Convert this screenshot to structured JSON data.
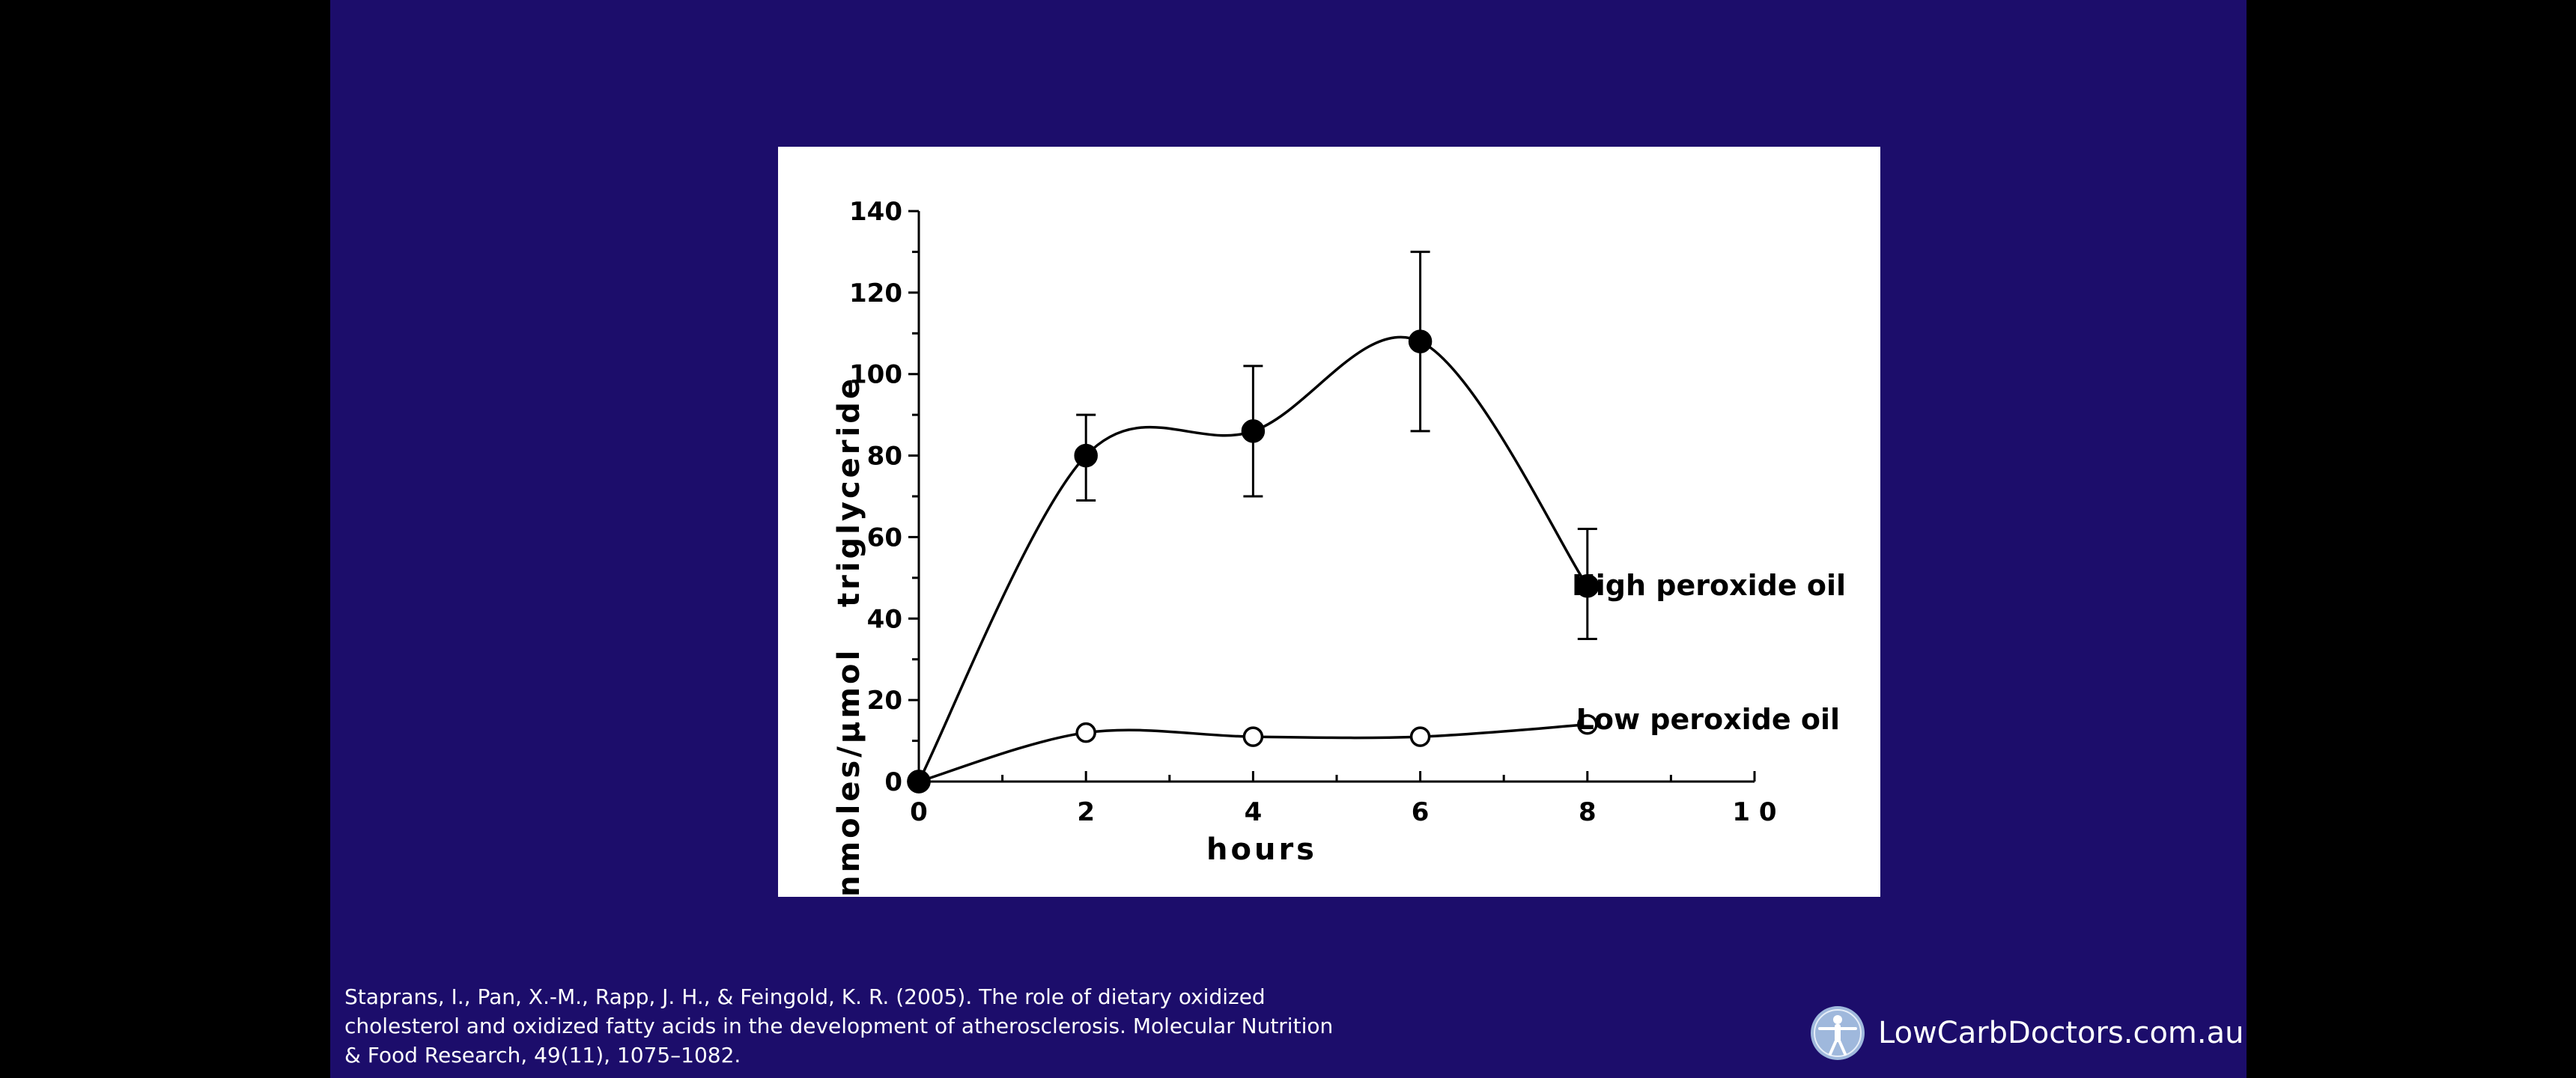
{
  "citation": {
    "lines": [
      "Staprans, I., Pan, X.-M., Rapp, J. H., & Feingold, K. R. (2005). The role of dietary oxidized",
      "cholesterol and oxidized fatty acids in the development of atherosclerosis. Molecular Nutrition",
      "& Food Research, 49(11), 1075–1082."
    ]
  },
  "brand": {
    "name": "LowCarbDoctors.com.au",
    "logo_icon": "vitruvian-man-icon"
  },
  "colors": {
    "slide_background": "#1c0d6b",
    "page_background": "#000000",
    "chart_background": "#ffffff",
    "ink": "#000000"
  },
  "chart_data": {
    "type": "line",
    "title": "",
    "xlabel": "hours",
    "ylabel": "nmoles/µmol   triglyceride",
    "xlim": [
      0,
      10
    ],
    "ylim": [
      0,
      140
    ],
    "x_ticks": [
      0,
      2,
      4,
      6,
      8,
      10
    ],
    "x_tick_labels": [
      "0",
      "2",
      "4",
      "6",
      "8",
      "1 0"
    ],
    "y_ticks": [
      0,
      20,
      40,
      60,
      80,
      100,
      120,
      140
    ],
    "y_tick_labels": [
      "0",
      "20",
      "40",
      "60",
      "80",
      "100",
      "120",
      "140"
    ],
    "grid": false,
    "legend": "inline labels at right of series",
    "series": [
      {
        "name": "High peroxide oil",
        "marker": "filled-circle",
        "x": [
          0,
          2,
          4,
          6,
          8
        ],
        "y": [
          0,
          80,
          86,
          108,
          48
        ],
        "error_low": [
          null,
          69,
          70,
          86,
          35
        ],
        "error_high": [
          null,
          90,
          102,
          130,
          62
        ]
      },
      {
        "name": "Low peroxide oil",
        "marker": "open-circle",
        "x": [
          0,
          2,
          4,
          6,
          8
        ],
        "y": [
          0,
          12,
          11,
          11,
          14
        ]
      }
    ]
  }
}
